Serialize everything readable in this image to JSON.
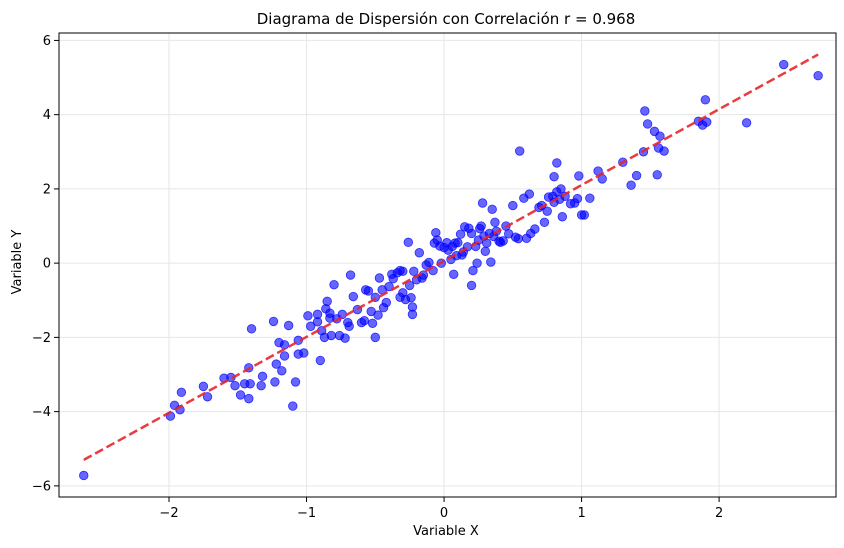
{
  "chart_data": {
    "type": "scatter",
    "title": "Diagrama de Dispersión con Correlación r = 0.968",
    "xlabel": "Variable X",
    "ylabel": "Variable Y",
    "xlim": [
      -2.8,
      2.85
    ],
    "ylim": [
      -6.3,
      6.2
    ],
    "xticks": [
      -2,
      -1,
      0,
      1,
      2
    ],
    "yticks": [
      -6,
      -4,
      -2,
      0,
      2,
      4,
      6
    ],
    "grid": true,
    "colors": {
      "points": "#0000ff",
      "trend": "#e8262b",
      "grid": "#e6e6e6",
      "axes": "#000000"
    },
    "trendline": {
      "style": "dashed",
      "x": [
        -2.62,
        2.72
      ],
      "y": [
        -5.3,
        5.62
      ]
    },
    "points": [
      [
        -2.62,
        -5.72
      ],
      [
        -1.99,
        -4.12
      ],
      [
        -1.96,
        -3.83
      ],
      [
        -1.92,
        -3.95
      ],
      [
        -1.91,
        -3.48
      ],
      [
        -1.75,
        -3.32
      ],
      [
        -1.72,
        -3.6
      ],
      [
        -1.6,
        -3.1
      ],
      [
        -1.55,
        -3.08
      ],
      [
        -1.52,
        -3.3
      ],
      [
        -1.48,
        -3.55
      ],
      [
        -1.45,
        -3.25
      ],
      [
        -1.42,
        -3.65
      ],
      [
        -1.42,
        -2.82
      ],
      [
        -1.41,
        -3.25
      ],
      [
        -1.4,
        -1.77
      ],
      [
        -1.33,
        -3.3
      ],
      [
        -1.32,
        -3.05
      ],
      [
        -1.24,
        -1.57
      ],
      [
        -1.23,
        -3.2
      ],
      [
        -1.22,
        -2.72
      ],
      [
        -1.2,
        -2.14
      ],
      [
        -1.18,
        -2.9
      ],
      [
        -1.16,
        -2.2
      ],
      [
        -1.16,
        -2.5
      ],
      [
        -1.13,
        -1.68
      ],
      [
        -1.1,
        -3.85
      ],
      [
        -1.08,
        -3.2
      ],
      [
        -1.06,
        -2.45
      ],
      [
        -1.06,
        -2.08
      ],
      [
        -1.02,
        -2.42
      ],
      [
        -0.99,
        -1.42
      ],
      [
        -0.97,
        -1.7
      ],
      [
        -0.92,
        -1.58
      ],
      [
        -0.92,
        -1.38
      ],
      [
        -0.9,
        -2.62
      ],
      [
        -0.89,
        -1.82
      ],
      [
        -0.87,
        -2.0
      ],
      [
        -0.86,
        -1.23
      ],
      [
        -0.85,
        -1.03
      ],
      [
        -0.83,
        -1.48
      ],
      [
        -0.83,
        -1.35
      ],
      [
        -0.82,
        -1.95
      ],
      [
        -0.8,
        -0.58
      ],
      [
        -0.78,
        -1.5
      ],
      [
        -0.76,
        -1.95
      ],
      [
        -0.74,
        -1.38
      ],
      [
        -0.72,
        -2.02
      ],
      [
        -0.7,
        -1.6
      ],
      [
        -0.69,
        -1.7
      ],
      [
        -0.68,
        -0.32
      ],
      [
        -0.66,
        -0.9
      ],
      [
        -0.63,
        -1.25
      ],
      [
        -0.6,
        -1.6
      ],
      [
        -0.58,
        -1.55
      ],
      [
        -0.57,
        -0.72
      ],
      [
        -0.55,
        -0.75
      ],
      [
        -0.53,
        -1.3
      ],
      [
        -0.52,
        -1.62
      ],
      [
        -0.5,
        -2.0
      ],
      [
        -0.5,
        -0.92
      ],
      [
        -0.48,
        -1.4
      ],
      [
        -0.47,
        -0.4
      ],
      [
        -0.45,
        -0.72
      ],
      [
        -0.44,
        -1.2
      ],
      [
        -0.42,
        -1.06
      ],
      [
        -0.4,
        -0.63
      ],
      [
        -0.38,
        -0.3
      ],
      [
        -0.37,
        -0.42
      ],
      [
        -0.34,
        -0.26
      ],
      [
        -0.32,
        -0.2
      ],
      [
        -0.32,
        -0.92
      ],
      [
        -0.3,
        -0.22
      ],
      [
        -0.3,
        -0.8
      ],
      [
        -0.28,
        -0.98
      ],
      [
        -0.26,
        0.56
      ],
      [
        -0.25,
        -0.6
      ],
      [
        -0.24,
        -0.93
      ],
      [
        -0.23,
        -1.18
      ],
      [
        -0.23,
        -1.38
      ],
      [
        -0.22,
        -0.22
      ],
      [
        -0.2,
        -0.45
      ],
      [
        -0.18,
        0.28
      ],
      [
        -0.16,
        -0.4
      ],
      [
        -0.15,
        -0.32
      ],
      [
        -0.13,
        -0.05
      ],
      [
        -0.11,
        0.02
      ],
      [
        -0.08,
        -0.2
      ],
      [
        -0.07,
        0.54
      ],
      [
        -0.06,
        0.82
      ],
      [
        -0.05,
        0.62
      ],
      [
        -0.03,
        0.46
      ],
      [
        -0.02,
        0.0
      ],
      [
        0.0,
        0.42
      ],
      [
        0.02,
        0.55
      ],
      [
        0.03,
        0.35
      ],
      [
        0.05,
        0.1
      ],
      [
        0.06,
        0.45
      ],
      [
        0.07,
        -0.3
      ],
      [
        0.08,
        0.54
      ],
      [
        0.09,
        0.2
      ],
      [
        0.1,
        0.55
      ],
      [
        0.12,
        0.78
      ],
      [
        0.13,
        0.22
      ],
      [
        0.14,
        0.3
      ],
      [
        0.15,
        0.98
      ],
      [
        0.17,
        0.44
      ],
      [
        0.18,
        0.94
      ],
      [
        0.2,
        -0.6
      ],
      [
        0.2,
        0.8
      ],
      [
        0.21,
        -0.2
      ],
      [
        0.23,
        0.45
      ],
      [
        0.24,
        0.0
      ],
      [
        0.25,
        0.62
      ],
      [
        0.26,
        0.93
      ],
      [
        0.27,
        1.0
      ],
      [
        0.28,
        1.62
      ],
      [
        0.29,
        0.73
      ],
      [
        0.3,
        0.32
      ],
      [
        0.31,
        0.54
      ],
      [
        0.33,
        0.8
      ],
      [
        0.34,
        0.03
      ],
      [
        0.35,
        1.45
      ],
      [
        0.36,
        0.72
      ],
      [
        0.37,
        1.1
      ],
      [
        0.38,
        0.86
      ],
      [
        0.4,
        0.59
      ],
      [
        0.41,
        0.56
      ],
      [
        0.43,
        0.6
      ],
      [
        0.45,
        1.0
      ],
      [
        0.47,
        0.79
      ],
      [
        0.5,
        1.55
      ],
      [
        0.52,
        0.7
      ],
      [
        0.54,
        0.66
      ],
      [
        0.55,
        3.02
      ],
      [
        0.58,
        1.75
      ],
      [
        0.6,
        0.67
      ],
      [
        0.62,
        1.86
      ],
      [
        0.63,
        0.8
      ],
      [
        0.66,
        0.92
      ],
      [
        0.69,
        1.5
      ],
      [
        0.71,
        1.55
      ],
      [
        0.73,
        1.1
      ],
      [
        0.75,
        1.4
      ],
      [
        0.76,
        1.78
      ],
      [
        0.79,
        1.8
      ],
      [
        0.8,
        1.64
      ],
      [
        0.8,
        2.33
      ],
      [
        0.82,
        1.92
      ],
      [
        0.82,
        2.7
      ],
      [
        0.84,
        1.72
      ],
      [
        0.85,
        2.0
      ],
      [
        0.86,
        1.25
      ],
      [
        0.88,
        1.8
      ],
      [
        0.92,
        1.6
      ],
      [
        0.95,
        1.62
      ],
      [
        0.97,
        1.74
      ],
      [
        0.98,
        2.35
      ],
      [
        1.0,
        1.3
      ],
      [
        1.02,
        1.3
      ],
      [
        1.06,
        1.75
      ],
      [
        1.12,
        2.48
      ],
      [
        1.15,
        2.27
      ],
      [
        1.3,
        2.72
      ],
      [
        1.36,
        2.1
      ],
      [
        1.4,
        2.36
      ],
      [
        1.45,
        3.0
      ],
      [
        1.46,
        4.1
      ],
      [
        1.48,
        3.75
      ],
      [
        1.53,
        3.55
      ],
      [
        1.55,
        2.38
      ],
      [
        1.56,
        3.1
      ],
      [
        1.57,
        3.42
      ],
      [
        1.6,
        3.02
      ],
      [
        1.85,
        3.82
      ],
      [
        1.88,
        3.72
      ],
      [
        1.9,
        4.4
      ],
      [
        1.91,
        3.8
      ],
      [
        2.2,
        3.78
      ],
      [
        2.47,
        5.35
      ],
      [
        2.72,
        5.05
      ]
    ]
  }
}
